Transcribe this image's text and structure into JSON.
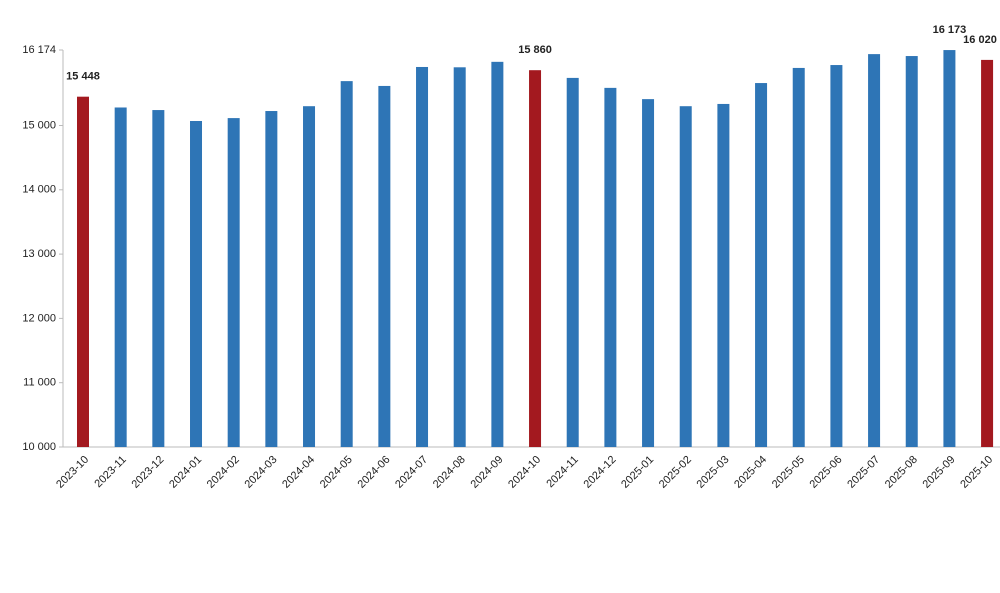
{
  "chart_data": {
    "type": "bar",
    "categories": [
      "2023-10",
      "2023-11",
      "2023-12",
      "2024-01",
      "2024-02",
      "2024-03",
      "2024-04",
      "2024-05",
      "2024-06",
      "2024-07",
      "2024-08",
      "2024-09",
      "2024-10",
      "2024-11",
      "2024-12",
      "2025-01",
      "2025-02",
      "2025-03",
      "2025-04",
      "2025-05",
      "2025-06",
      "2025-07",
      "2025-08",
      "2025-09",
      "2025-10"
    ],
    "values": [
      15448,
      15280,
      15240,
      15070,
      15115,
      15225,
      15300,
      15690,
      15615,
      15910,
      15905,
      15990,
      15860,
      15740,
      15585,
      15410,
      15300,
      15335,
      15660,
      15895,
      15940,
      16110,
      16080,
      16173,
      16020
    ],
    "value_labels": [
      "15 448",
      null,
      null,
      null,
      null,
      null,
      null,
      null,
      null,
      null,
      null,
      null,
      "15 860",
      null,
      null,
      null,
      null,
      null,
      null,
      null,
      null,
      null,
      null,
      "16 173",
      "16 020"
    ],
    "colors": [
      "#a3191f",
      "#2e75b6",
      "#2e75b6",
      "#2e75b6",
      "#2e75b6",
      "#2e75b6",
      "#2e75b6",
      "#2e75b6",
      "#2e75b6",
      "#2e75b6",
      "#2e75b6",
      "#2e75b6",
      "#a3191f",
      "#2e75b6",
      "#2e75b6",
      "#2e75b6",
      "#2e75b6",
      "#2e75b6",
      "#2e75b6",
      "#2e75b6",
      "#2e75b6",
      "#2e75b6",
      "#2e75b6",
      "#2e75b6",
      "#a3191f"
    ],
    "ylim": [
      10000,
      16174
    ],
    "yticks": [
      {
        "value": 10000,
        "label": "10 000"
      },
      {
        "value": 11000,
        "label": "11 000"
      },
      {
        "value": 12000,
        "label": "12 000"
      },
      {
        "value": 13000,
        "label": "13 000"
      },
      {
        "value": 14000,
        "label": "14 000"
      },
      {
        "value": 15000,
        "label": "15 000"
      },
      {
        "value": 16174,
        "label": "16 174"
      }
    ],
    "grid": false
  }
}
